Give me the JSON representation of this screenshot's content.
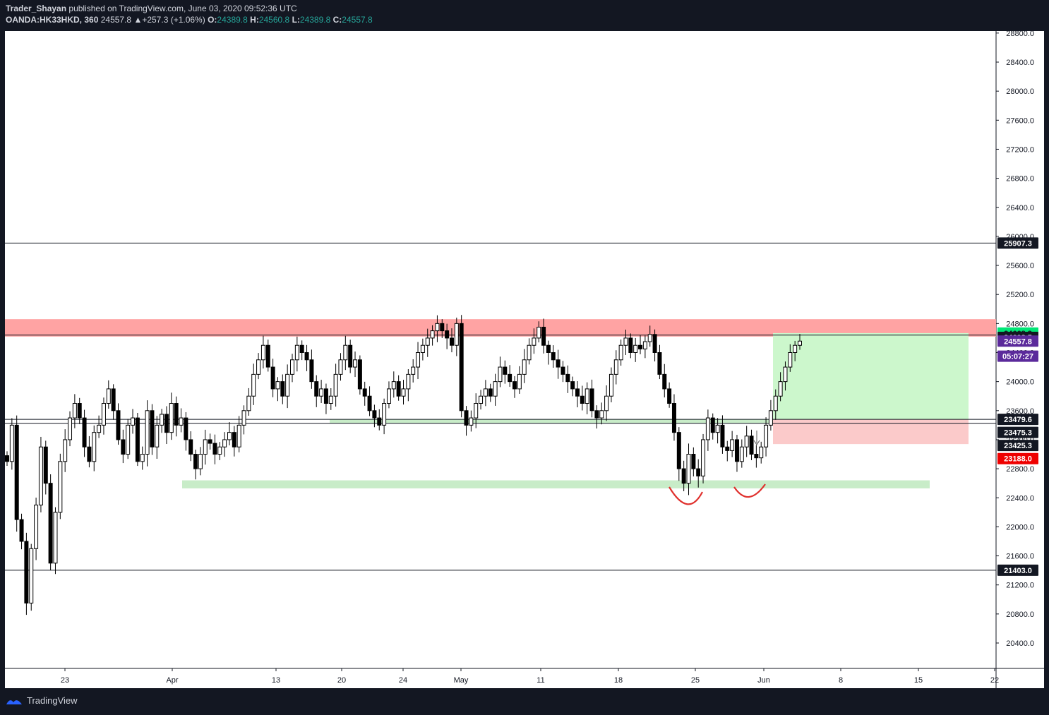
{
  "header": {
    "author": "Trader_Shayan",
    "published_text": "published on TradingView.com, June 03, 2020 09:52:36 UTC",
    "symbol": "OANDA:HK33HKD, 360",
    "last": "24557.8",
    "change": "▲+257.3 (+1.06%)",
    "o_label": "O:",
    "o_value": "24389.8",
    "h_label": "H:",
    "h_value": "24560.8",
    "l_label": "L:",
    "l_value": "24389.8",
    "c_label": "C:",
    "c_value": "24557.8"
  },
  "footer": {
    "brand": "TradingView"
  },
  "colors": {
    "background": "#131722",
    "panel": "#ffffff",
    "text": "#d1d4dc",
    "candle": "#000000",
    "resistance_zone": "#ffa3a3",
    "support_zone": "#c8ecc8",
    "target_zone": "#ccf7cc",
    "stop_zone": "#fbcaca",
    "annotation": "#e0312e"
  },
  "chart_data": {
    "type": "candlestick",
    "ylim": [
      20000,
      28900
    ],
    "y_ticks": [
      "20400.0",
      "20800.0",
      "21200.0",
      "21600.0",
      "22000.0",
      "22400.0",
      "22800.0",
      "23200.0",
      "23600.0",
      "24000.0",
      "24400.0",
      "24800.0",
      "25200.0",
      "25600.0",
      "26000.0",
      "26400.0",
      "26800.0",
      "27200.0",
      "27600.0",
      "28000.0",
      "28400.0",
      "28800.0"
    ],
    "x_ticks": [
      "23",
      "Apr",
      "13",
      "20",
      "24",
      "May",
      "11",
      "18",
      "25",
      "Jun",
      "8",
      "15",
      "22"
    ],
    "horizontal_lines": [
      25907.3,
      23479.6,
      23425.3,
      21403.0
    ],
    "zones": [
      {
        "name": "resistance",
        "low": 24620,
        "high": 24860
      },
      {
        "name": "support-upper",
        "low": 23425,
        "high": 23480
      },
      {
        "name": "support-lower",
        "low": 22530,
        "high": 22640
      }
    ],
    "position": {
      "entry": 23479.6,
      "target": 24668.3,
      "stop": 23140
    },
    "price_labels": [
      {
        "value": "24668.3",
        "price": 24668.3,
        "bg": "#00e676",
        "fg": "#131722"
      },
      {
        "value": "24608.5",
        "price": 24608.5,
        "bg": "#131722",
        "fg": "#ffffff"
      },
      {
        "value": "24557.8",
        "price": 24557.8,
        "bg": "#5b2a9b",
        "fg": "#ffffff"
      },
      {
        "value": "05:07:27",
        "price": 24350,
        "bg": "#5b2a9b",
        "fg": "#ffffff"
      },
      {
        "value": "25907.3",
        "price": 25907.3,
        "bg": "#131722",
        "fg": "#ffffff"
      },
      {
        "value": "23479.6",
        "price": 23479.6,
        "bg": "#131722",
        "fg": "#ffffff"
      },
      {
        "value": "23475.3",
        "price": 23300,
        "bg": "#131722",
        "fg": "#ffffff"
      },
      {
        "value": "23425.3",
        "price": 23120,
        "bg": "#131722",
        "fg": "#ffffff"
      },
      {
        "value": "23188.0",
        "price": 22940,
        "bg": "#ef0000",
        "fg": "#ffffff"
      },
      {
        "value": "21403.0",
        "price": 21403.0,
        "bg": "#131722",
        "fg": "#ffffff"
      }
    ],
    "closes": [
      22900,
      23400,
      22100,
      21800,
      20950,
      21700,
      22300,
      23100,
      22600,
      21500,
      22200,
      22900,
      23200,
      23500,
      23700,
      23500,
      23100,
      22900,
      23300,
      23400,
      23700,
      23900,
      23600,
      23200,
      23000,
      23400,
      23500,
      22900,
      23000,
      23600,
      23100,
      23400,
      23550,
      23300,
      23700,
      23400,
      23500,
      23200,
      23000,
      22800,
      23000,
      23200,
      23150,
      23000,
      23100,
      23200,
      23300,
      23100,
      23400,
      23600,
      23800,
      24100,
      24300,
      24500,
      24200,
      23900,
      24000,
      23800,
      24100,
      24300,
      24500,
      24400,
      24300,
      24000,
      23800,
      23900,
      23700,
      23800,
      24100,
      24300,
      24500,
      24200,
      24300,
      23900,
      23800,
      23600,
      23500,
      23400,
      23700,
      23900,
      24000,
      23800,
      23900,
      24100,
      24200,
      24400,
      24500,
      24600,
      24700,
      24800,
      24700,
      24600,
      24500,
      24800,
      23600,
      23400,
      23500,
      23700,
      23800,
      23900,
      23800,
      24000,
      24200,
      24100,
      24000,
      23900,
      24100,
      24300,
      24500,
      24600,
      24750,
      24500,
      24400,
      24300,
      24200,
      24100,
      24000,
      23900,
      23800,
      23700,
      23900,
      23600,
      23500,
      23600,
      23800,
      24100,
      24300,
      24500,
      24600,
      24400,
      24500,
      24450,
      24550,
      24650,
      24400,
      24100,
      23900,
      23700,
      23300,
      22800,
      22600,
      23000,
      22800,
      22700,
      23200,
      23500,
      23300,
      23400,
      23100,
      23050,
      23200,
      22900,
      23100,
      23250,
      23000,
      22950,
      23100,
      23400,
      23600,
      23800,
      24000,
      24200,
      24400,
      24500,
      24557.8
    ]
  }
}
